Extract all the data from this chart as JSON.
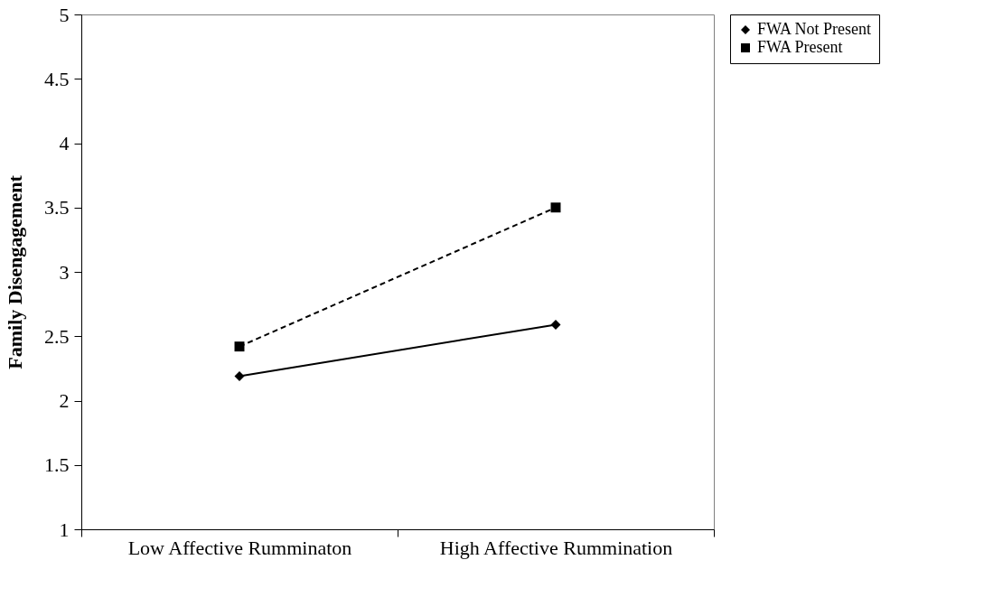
{
  "chart_data": {
    "type": "line",
    "ylabel": "Family Disengagement",
    "categories": [
      "Low Affective Rumminaton",
      "High Affective Rummination"
    ],
    "series": [
      {
        "name": "FWA Not Present",
        "color": "#000000",
        "values": [
          2.19,
          2.59
        ],
        "marker": "diamond",
        "line_style": "solid"
      },
      {
        "name": "FWA Present",
        "color": "#000000",
        "values": [
          2.42,
          3.5
        ],
        "marker": "square",
        "line_style": "dashed"
      }
    ],
    "ylim": [
      1,
      5
    ],
    "yticks": [
      1,
      1.5,
      2,
      2.5,
      3,
      3.5,
      4,
      4.5,
      5
    ],
    "grid": false,
    "legend": "right"
  }
}
